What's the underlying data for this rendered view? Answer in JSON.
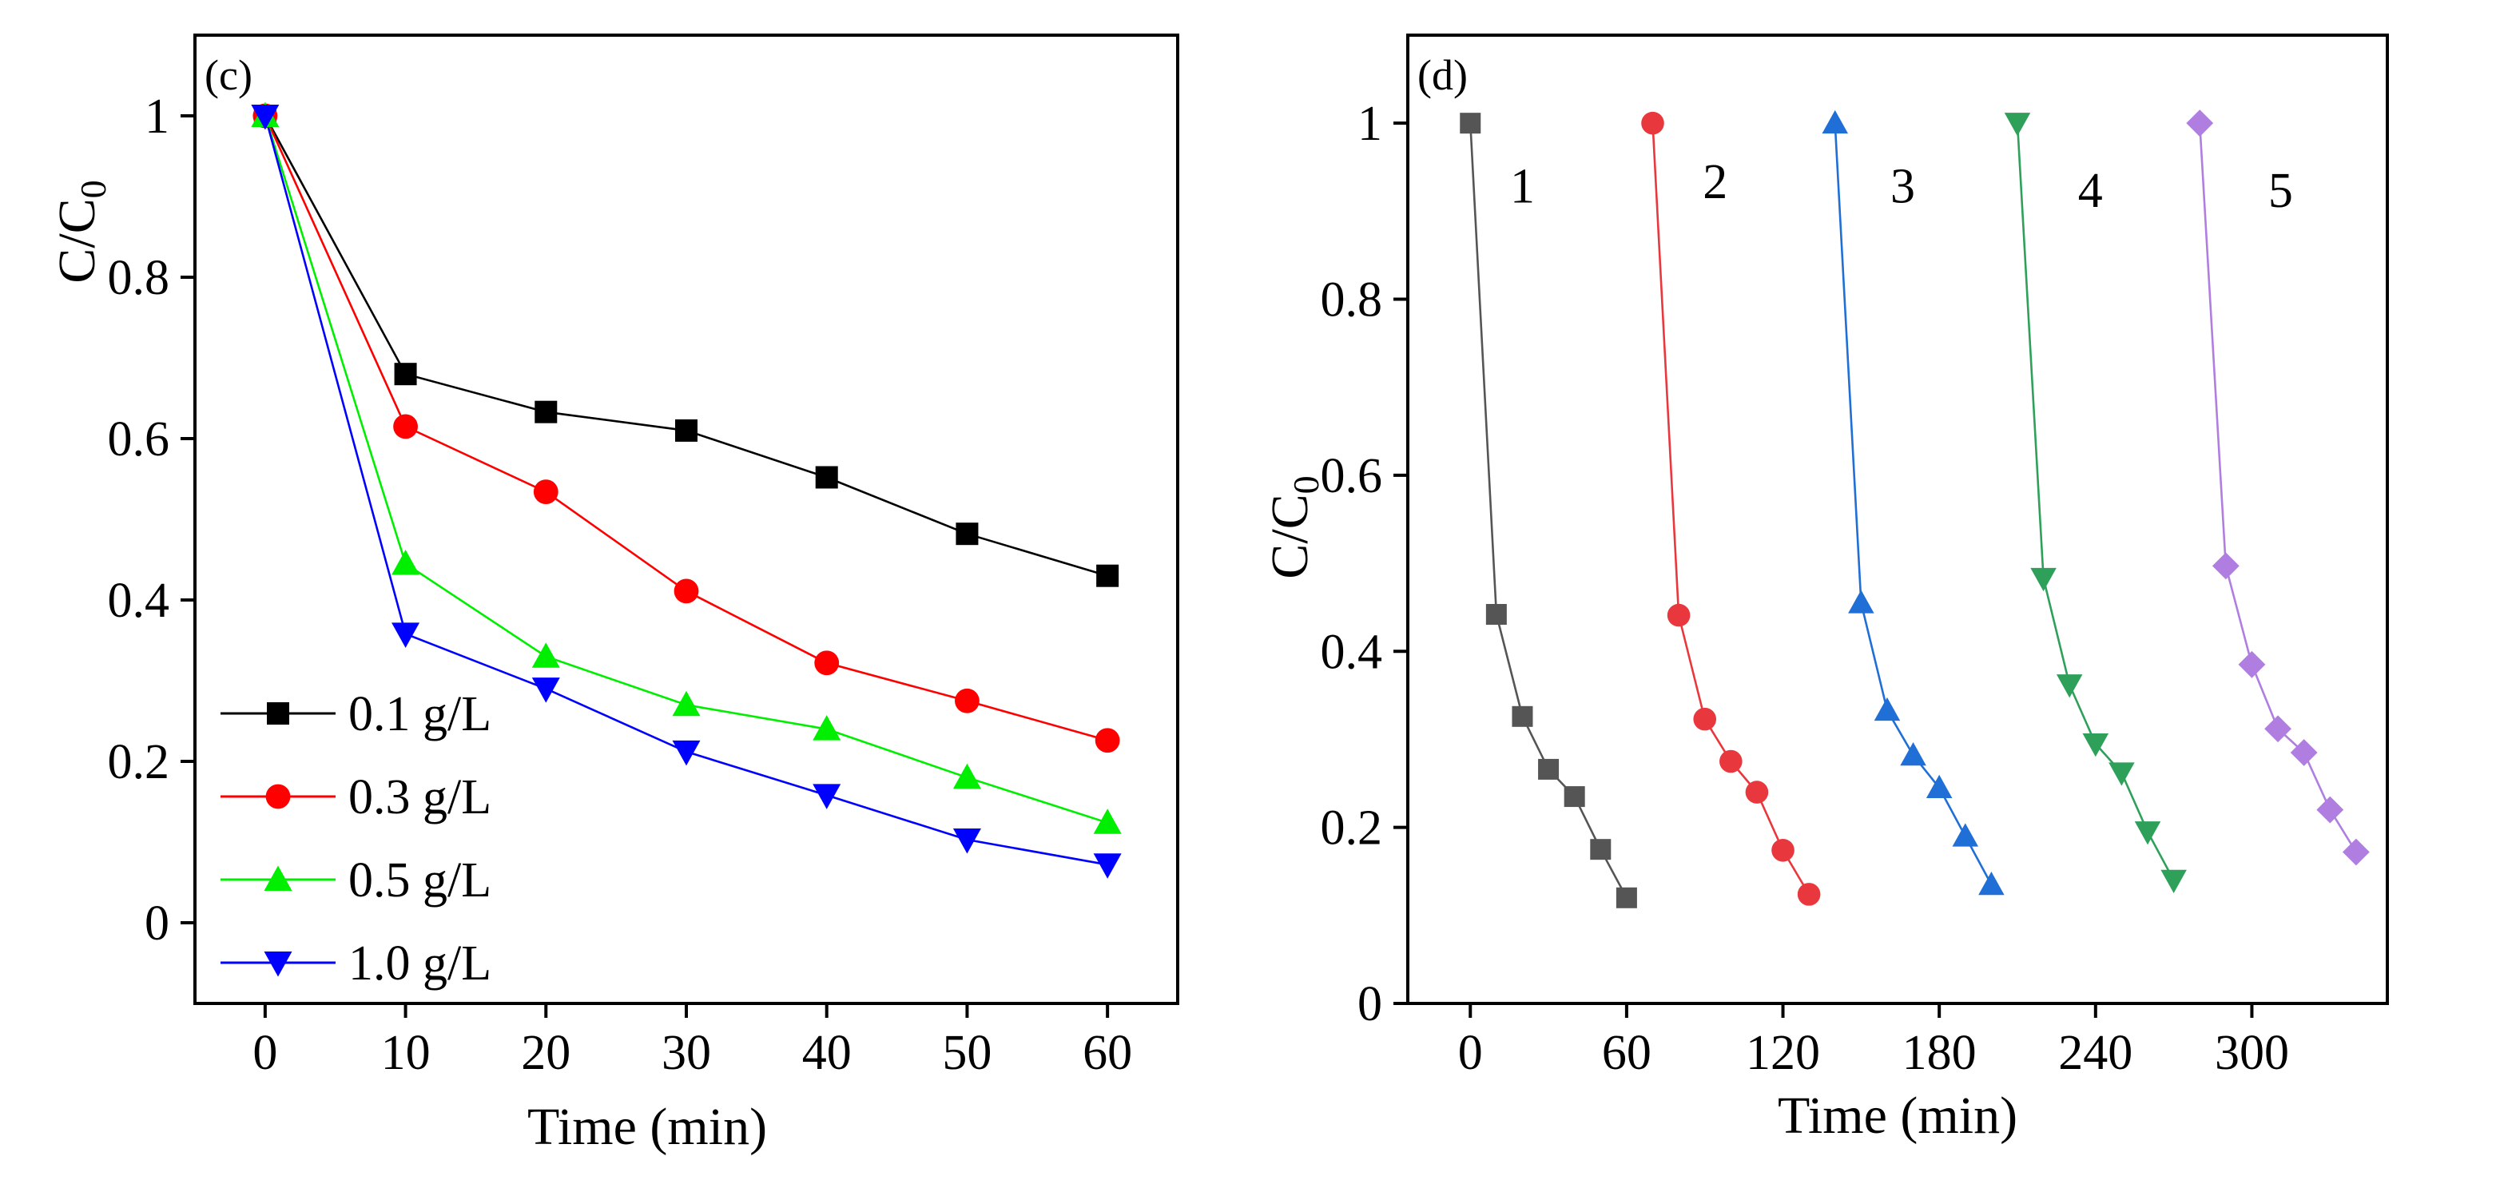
{
  "chart_data": [
    {
      "type": "line",
      "panel_label": "(c)",
      "xlabel": "Time (min)",
      "ylabel": "C/C",
      "ylabel_subscript": "0",
      "xlim": [
        -5,
        65
      ],
      "ylim": [
        -0.1,
        1.1
      ],
      "xticks": [
        0,
        10,
        20,
        30,
        40,
        50,
        60
      ],
      "yticks": [
        0,
        0.2,
        0.4,
        0.6,
        0.8,
        1
      ],
      "xtick_labels": [
        "0",
        "10",
        "20",
        "30",
        "40",
        "50",
        "60"
      ],
      "ytick_labels": [
        "0",
        "0.2",
        "0.4",
        "0.6",
        "0.8",
        "1"
      ],
      "legend_position": "bottom-left",
      "x": [
        0,
        10,
        20,
        30,
        40,
        50,
        60
      ],
      "series": [
        {
          "name": "0.1 g/L",
          "color": "#000000",
          "marker": "square",
          "values": [
            1.0,
            0.68,
            0.633,
            0.61,
            0.552,
            0.482,
            0.43
          ]
        },
        {
          "name": "0.3 g/L",
          "color": "#ff0000",
          "marker": "circle",
          "values": [
            1.0,
            0.615,
            0.534,
            0.411,
            0.322,
            0.275,
            0.226
          ]
        },
        {
          "name": "0.5 g/L",
          "color": "#00ee00",
          "marker": "triangle-up",
          "values": [
            1.0,
            0.445,
            0.33,
            0.27,
            0.24,
            0.18,
            0.124
          ]
        },
        {
          "name": "1.0 g/L",
          "color": "#0000ff",
          "marker": "triangle-down",
          "values": [
            1.0,
            0.358,
            0.29,
            0.212,
            0.158,
            0.103,
            0.072
          ]
        }
      ]
    },
    {
      "type": "line",
      "panel_label": "(d)",
      "xlabel": "Time (min)",
      "ylabel": "C/C",
      "ylabel_subscript": "0",
      "xlim": [
        -24,
        352
      ],
      "ylim": [
        0,
        1.1
      ],
      "xticks": [
        0,
        60,
        120,
        180,
        240,
        300
      ],
      "yticks": [
        0,
        0.2,
        0.4,
        0.6,
        0.8,
        1
      ],
      "xtick_labels": [
        "0",
        "60",
        "120",
        "180",
        "240",
        "300"
      ],
      "ytick_labels": [
        "0",
        "0.2",
        "0.4",
        "0.6",
        "0.8",
        "1"
      ],
      "series": [
        {
          "name": "1",
          "color": "#555555",
          "marker": "square",
          "x": [
            0,
            10,
            20,
            30,
            40,
            50,
            60
          ],
          "values": [
            1.0,
            0.442,
            0.326,
            0.266,
            0.235,
            0.175,
            0.12
          ]
        },
        {
          "name": "2",
          "color": "#e8383d",
          "marker": "circle",
          "x": [
            70,
            80,
            90,
            100,
            110,
            120,
            130
          ],
          "values": [
            1.0,
            0.441,
            0.323,
            0.275,
            0.24,
            0.174,
            0.124
          ]
        },
        {
          "name": "3",
          "color": "#1f6fd6",
          "marker": "triangle-up",
          "x": [
            140,
            150,
            160,
            170,
            180,
            190,
            200
          ],
          "values": [
            1.0,
            0.455,
            0.333,
            0.282,
            0.245,
            0.19,
            0.135
          ]
        },
        {
          "name": "4",
          "color": "#2ea05a",
          "marker": "triangle-down",
          "x": [
            210,
            220,
            230,
            240,
            250,
            260,
            270
          ],
          "values": [
            1.0,
            0.483,
            0.362,
            0.295,
            0.262,
            0.195,
            0.14
          ]
        },
        {
          "name": "5",
          "color": "#b07ee0",
          "marker": "diamond",
          "x": [
            280,
            290,
            300,
            310,
            320,
            330,
            340
          ],
          "values": [
            1.0,
            0.497,
            0.385,
            0.312,
            0.285,
            0.22,
            0.172
          ]
        }
      ],
      "annotations": [
        {
          "text": "1",
          "x": 20,
          "y": 0.91
        },
        {
          "text": "2",
          "x": 94,
          "y": 0.915
        },
        {
          "text": "3",
          "x": 166,
          "y": 0.91
        },
        {
          "text": "4",
          "x": 238,
          "y": 0.905
        },
        {
          "text": "5",
          "x": 311,
          "y": 0.905
        }
      ]
    }
  ]
}
